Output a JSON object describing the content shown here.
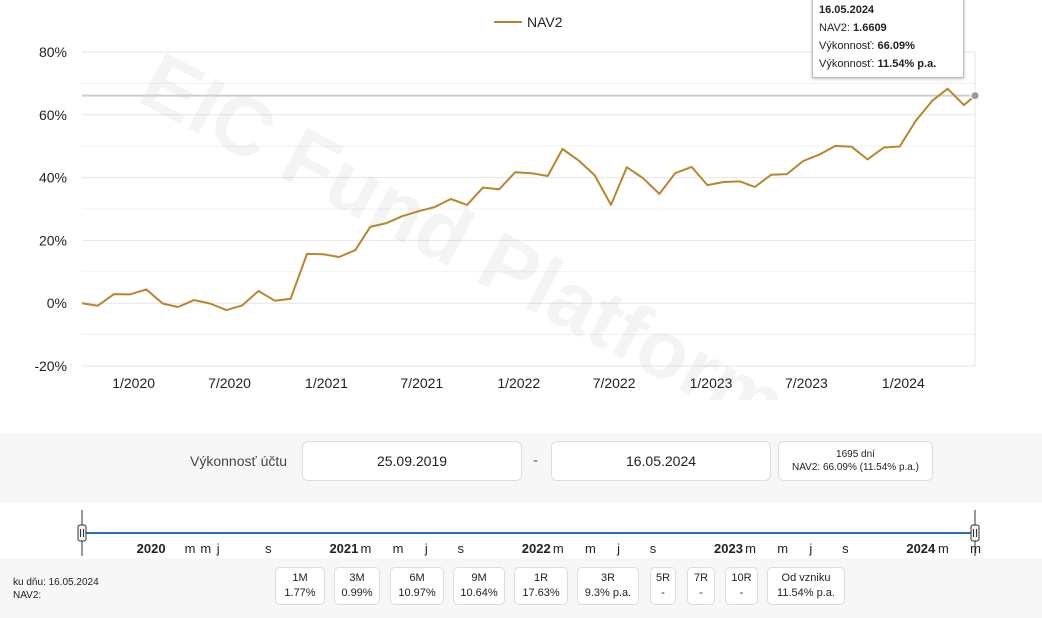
{
  "chart_data": {
    "type": "line",
    "watermark": "EIC Fund Platform",
    "series": [
      {
        "name": "NAV2",
        "color": "#b8862b",
        "points": [
          [
            "2019-09-25",
            0.0
          ],
          [
            "2019-10-25",
            -0.8
          ],
          [
            "2019-11-25",
            2.9
          ],
          [
            "2019-12-25",
            2.8
          ],
          [
            "2020-01-25",
            4.4
          ],
          [
            "2020-02-25",
            -0.1
          ],
          [
            "2020-03-25",
            -1.2
          ],
          [
            "2020-04-25",
            1.0
          ],
          [
            "2020-05-25",
            -0.1
          ],
          [
            "2020-06-25",
            -2.2
          ],
          [
            "2020-07-25",
            -0.7
          ],
          [
            "2020-08-25",
            3.9
          ],
          [
            "2020-09-25",
            0.8
          ],
          [
            "2020-10-25",
            1.4
          ],
          [
            "2020-11-25",
            15.7
          ],
          [
            "2020-12-25",
            15.6
          ],
          [
            "2021-01-25",
            14.7
          ],
          [
            "2021-02-25",
            16.9
          ],
          [
            "2021-03-25",
            24.3
          ],
          [
            "2021-04-25",
            25.5
          ],
          [
            "2021-05-25",
            27.7
          ],
          [
            "2021-06-25",
            29.3
          ],
          [
            "2021-07-25",
            30.6
          ],
          [
            "2021-08-25",
            33.2
          ],
          [
            "2021-09-25",
            31.3
          ],
          [
            "2021-10-25",
            36.8
          ],
          [
            "2021-11-25",
            36.3
          ],
          [
            "2021-12-25",
            41.7
          ],
          [
            "2022-01-25",
            41.4
          ],
          [
            "2022-02-25",
            40.5
          ],
          [
            "2022-03-25",
            49.1
          ],
          [
            "2022-04-25",
            45.4
          ],
          [
            "2022-05-25",
            40.8
          ],
          [
            "2022-06-25",
            31.3
          ],
          [
            "2022-07-25",
            43.3
          ],
          [
            "2022-08-25",
            39.8
          ],
          [
            "2022-09-25",
            34.8
          ],
          [
            "2022-10-25",
            41.4
          ],
          [
            "2022-11-25",
            43.4
          ],
          [
            "2022-12-25",
            37.6
          ],
          [
            "2023-01-25",
            38.6
          ],
          [
            "2023-02-25",
            38.8
          ],
          [
            "2023-03-25",
            37.0
          ],
          [
            "2023-04-25",
            40.9
          ],
          [
            "2023-05-25",
            41.1
          ],
          [
            "2023-06-25",
            45.3
          ],
          [
            "2023-07-25",
            47.3
          ],
          [
            "2023-08-25",
            50.1
          ],
          [
            "2023-09-25",
            49.8
          ],
          [
            "2023-10-25",
            45.8
          ],
          [
            "2023-11-25",
            49.6
          ],
          [
            "2023-12-25",
            49.9
          ],
          [
            "2024-01-25",
            58.2
          ],
          [
            "2024-02-25",
            64.5
          ],
          [
            "2024-03-25",
            68.3
          ],
          [
            "2024-04-25",
            63.1
          ],
          [
            "2024-05-16",
            66.09
          ]
        ]
      }
    ],
    "ylim": [
      -20,
      80
    ],
    "y_ticks": [
      -20,
      0,
      20,
      40,
      60,
      80
    ],
    "y_tick_labels": [
      "-20%",
      "0%",
      "20%",
      "40%",
      "60%",
      "80%"
    ],
    "x_range": [
      "2019-09-25",
      "2024-05-16"
    ],
    "x_ticks": [
      {
        "date": "2020-01-01",
        "label": "1/2020"
      },
      {
        "date": "2020-07-01",
        "label": "7/2020"
      },
      {
        "date": "2021-01-01",
        "label": "1/2021"
      },
      {
        "date": "2021-07-01",
        "label": "7/2021"
      },
      {
        "date": "2022-01-01",
        "label": "1/2022"
      },
      {
        "date": "2022-07-01",
        "label": "7/2022"
      },
      {
        "date": "2023-01-01",
        "label": "1/2023"
      },
      {
        "date": "2023-07-01",
        "label": "7/2023"
      },
      {
        "date": "2024-01-01",
        "label": "1/2024"
      }
    ],
    "crosshair_value": 66.09,
    "legend_position": "top-center",
    "grid": true
  },
  "tooltip": {
    "date": "16.05.2024",
    "nav_label": "NAV2: ",
    "nav_value": "1.6609",
    "perf_label": "Výkonnosť: ",
    "perf_value": "66.09%",
    "perf_pa_label": "Výkonnosť: ",
    "perf_pa_value": "11.54% p.a."
  },
  "range": {
    "label": "Výkonnosť účtu",
    "from": "25.09.2019",
    "separator": "-",
    "to": "16.05.2024",
    "days": "1695 dní",
    "summary": "NAV2: 66.09% (11.54% p.a.)"
  },
  "navigator": {
    "labels": [
      {
        "date": "2020-01-01",
        "text": "2020",
        "bold": true
      },
      {
        "date": "2020-04-01",
        "text": "m",
        "bold": false
      },
      {
        "date": "2020-05-01",
        "text": "m",
        "bold": false
      },
      {
        "date": "2020-06-01",
        "text": "j",
        "bold": false
      },
      {
        "date": "2020-09-01",
        "text": "s",
        "bold": false
      },
      {
        "date": "2021-01-01",
        "text": "2021",
        "bold": true
      },
      {
        "date": "2021-03-01",
        "text": "m",
        "bold": false
      },
      {
        "date": "2021-05-01",
        "text": "m",
        "bold": false
      },
      {
        "date": "2021-07-01",
        "text": "j",
        "bold": false
      },
      {
        "date": "2021-09-01",
        "text": "s",
        "bold": false
      },
      {
        "date": "2022-01-01",
        "text": "2022",
        "bold": true
      },
      {
        "date": "2022-03-01",
        "text": "m",
        "bold": false
      },
      {
        "date": "2022-05-01",
        "text": "m",
        "bold": false
      },
      {
        "date": "2022-07-01",
        "text": "j",
        "bold": false
      },
      {
        "date": "2022-09-01",
        "text": "s",
        "bold": false
      },
      {
        "date": "2023-01-01",
        "text": "2023",
        "bold": true
      },
      {
        "date": "2023-03-01",
        "text": "m",
        "bold": false
      },
      {
        "date": "2023-05-01",
        "text": "m",
        "bold": false
      },
      {
        "date": "2023-07-01",
        "text": "j",
        "bold": false
      },
      {
        "date": "2023-09-01",
        "text": "s",
        "bold": false
      },
      {
        "date": "2024-01-01",
        "text": "2024",
        "bold": true
      },
      {
        "date": "2024-03-01",
        "text": "m",
        "bold": false
      },
      {
        "date": "2024-05-01",
        "text": "m",
        "bold": false
      }
    ]
  },
  "periods": [
    {
      "label": "1M",
      "value": "1.77%"
    },
    {
      "label": "3M",
      "value": "0.99%"
    },
    {
      "label": "6M",
      "value": "10.97%"
    },
    {
      "label": "9M",
      "value": "10.64%"
    },
    {
      "label": "1R",
      "value": "17.63%"
    },
    {
      "label": "3R",
      "value": "9.3% p.a."
    },
    {
      "label": "5R",
      "value": "-"
    },
    {
      "label": "7R",
      "value": "-"
    },
    {
      "label": "10R",
      "value": "-"
    },
    {
      "label": "Od vzniku",
      "value": "11.54% p.a."
    }
  ],
  "footer": {
    "date_line": "ku dňu: 16.05.2024",
    "nav_line": "NAV2:"
  },
  "colors": {
    "series": "#b8862b",
    "navigator_line": "#2a6fc0",
    "grid": "#e6e6e6",
    "band": "#f7f7f7"
  }
}
